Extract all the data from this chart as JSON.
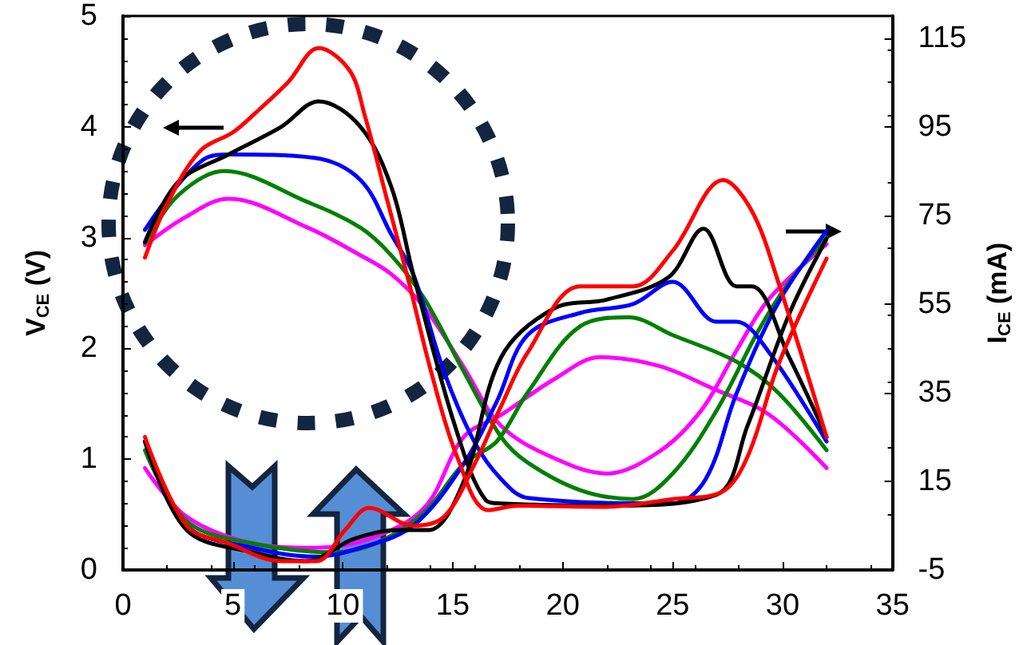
{
  "chart_data": {
    "type": "line",
    "ylabel": "V$_{CE}$ (V)",
    "y2label": "I$_{CE}$ (mA)",
    "xlim": [
      0,
      35
    ],
    "xticks": [
      0,
      5,
      10,
      15,
      20,
      25,
      30,
      35
    ],
    "ylim": [
      0,
      5
    ],
    "yticks": [
      0,
      1,
      2,
      3,
      4,
      5
    ],
    "y2lim": [
      -5,
      120
    ],
    "y2ticks": [
      -5,
      15,
      35,
      55,
      75,
      95,
      115
    ],
    "line_style": "solid",
    "series": [
      {
        "color": "#ff0000",
        "x": [
          1,
          2,
          3.5,
          5,
          6,
          7.5,
          8.9,
          10.3,
          11,
          12,
          13,
          14,
          15.2,
          16.6,
          18,
          22,
          25,
          27.2,
          28.4,
          29.8,
          32
        ],
        "values": [
          2.82,
          3.3,
          3.78,
          3.95,
          4.12,
          4.4,
          4.71,
          4.51,
          4.1,
          3.35,
          2.6,
          1.8,
          1.02,
          0.54,
          0.58,
          0.57,
          0.64,
          0.7,
          1.02,
          1.85,
          2.81
        ]
      },
      {
        "color": "#000000",
        "x": [
          1,
          2.5,
          4.8,
          7.2,
          8.9,
          10.8,
          12.2,
          13.2,
          15.1,
          16.5,
          17.2,
          22,
          27,
          28.4,
          30.3,
          32
        ],
        "values": [
          2.96,
          3.5,
          3.75,
          4.0,
          4.23,
          4.0,
          3.46,
          2.67,
          1.3,
          0.63,
          0.6,
          0.58,
          0.68,
          1.3,
          2.31,
          2.99
        ]
      },
      {
        "color": "#0000ff",
        "x": [
          1,
          3.7,
          4.9,
          8.7,
          10.8,
          12.2,
          13.2,
          14.6,
          16,
          17.2,
          18.4,
          25,
          26.5,
          27.9,
          29.8,
          32
        ],
        "values": [
          3.07,
          3.71,
          3.75,
          3.72,
          3.52,
          3.03,
          2.67,
          1.79,
          1.15,
          0.82,
          0.65,
          0.6,
          0.82,
          1.59,
          2.41,
          3.06
        ]
      },
      {
        "color": "#008000",
        "x": [
          1,
          2.5,
          4.6,
          8.4,
          10.8,
          12.2,
          13.7,
          15.5,
          17.2,
          18.4,
          20.8,
          23.2,
          25,
          27,
          28.9,
          30.3,
          32
        ],
        "values": [
          2.95,
          3.38,
          3.6,
          3.32,
          3.09,
          2.84,
          2.45,
          1.79,
          1.2,
          0.97,
          0.72,
          0.64,
          0.87,
          1.44,
          2.16,
          2.6,
          3.0
        ]
      },
      {
        "color": "#ff00ff",
        "x": [
          1,
          2.8,
          4.8,
          8.4,
          10.8,
          12.2,
          13.7,
          15.5,
          17.2,
          19.6,
          22,
          24.4,
          26.3,
          27.9,
          29.4,
          32
        ],
        "values": [
          2.93,
          3.18,
          3.35,
          3.09,
          2.84,
          2.67,
          2.37,
          1.83,
          1.3,
          1.01,
          0.87,
          1.07,
          1.44,
          1.98,
          2.45,
          2.94
        ]
      },
      {
        "color": "#ff0000",
        "axis": "y2",
        "x": [
          1,
          2.9,
          4.8,
          7.2,
          8.8,
          10.1,
          11.2,
          13.2,
          14.6,
          16,
          17.2,
          18.4,
          20.8,
          23.2,
          25,
          27.3,
          28.6,
          29.8,
          32
        ],
        "values": [
          25,
          5,
          1,
          -3,
          -3,
          4,
          9,
          5,
          7,
          19,
          32,
          44,
          59,
          59,
          67,
          83,
          76,
          60,
          25
        ]
      },
      {
        "color": "#000000",
        "axis": "y2",
        "x": [
          1,
          2.9,
          5.9,
          8.3,
          10.5,
          12.5,
          13.9,
          15.5,
          17.2,
          19.6,
          22,
          24.8,
          26.4,
          27.9,
          28.6,
          30.3,
          32
        ],
        "values": [
          24,
          4,
          -1,
          -3,
          2,
          4,
          4,
          15,
          43,
          54,
          56,
          61,
          72,
          59,
          59,
          43,
          25
        ]
      },
      {
        "color": "#0000ff",
        "axis": "y2",
        "x": [
          1,
          2.9,
          5.9,
          8.7,
          10.8,
          13.2,
          15.5,
          17,
          18.4,
          20.8,
          23.2,
          25,
          27,
          27.9,
          29.4,
          32
        ],
        "values": [
          24,
          5,
          0,
          -2,
          0,
          5,
          19,
          33,
          48,
          53,
          55,
          60,
          51,
          51,
          44,
          24
        ]
      },
      {
        "color": "#008000",
        "axis": "y2",
        "x": [
          1,
          2.9,
          5.9,
          9.6,
          11.5,
          13.7,
          15.5,
          17,
          18.4,
          20.8,
          23,
          25,
          27.9,
          29.8,
          32
        ],
        "values": [
          22,
          6,
          1,
          -1,
          1,
          8,
          19,
          24,
          35,
          50,
          52,
          48,
          42,
          35,
          22
        ]
      },
      {
        "color": "#ff00ff",
        "axis": "y2",
        "x": [
          1,
          2.9,
          5.9,
          8.7,
          11.2,
          13.7,
          15.5,
          17.2,
          19.6,
          21.7,
          24.4,
          26.8,
          29.4,
          32
        ],
        "values": [
          18,
          7,
          1,
          0,
          2,
          9,
          25,
          30,
          38,
          43,
          41,
          36,
          30,
          18
        ]
      }
    ]
  }
}
